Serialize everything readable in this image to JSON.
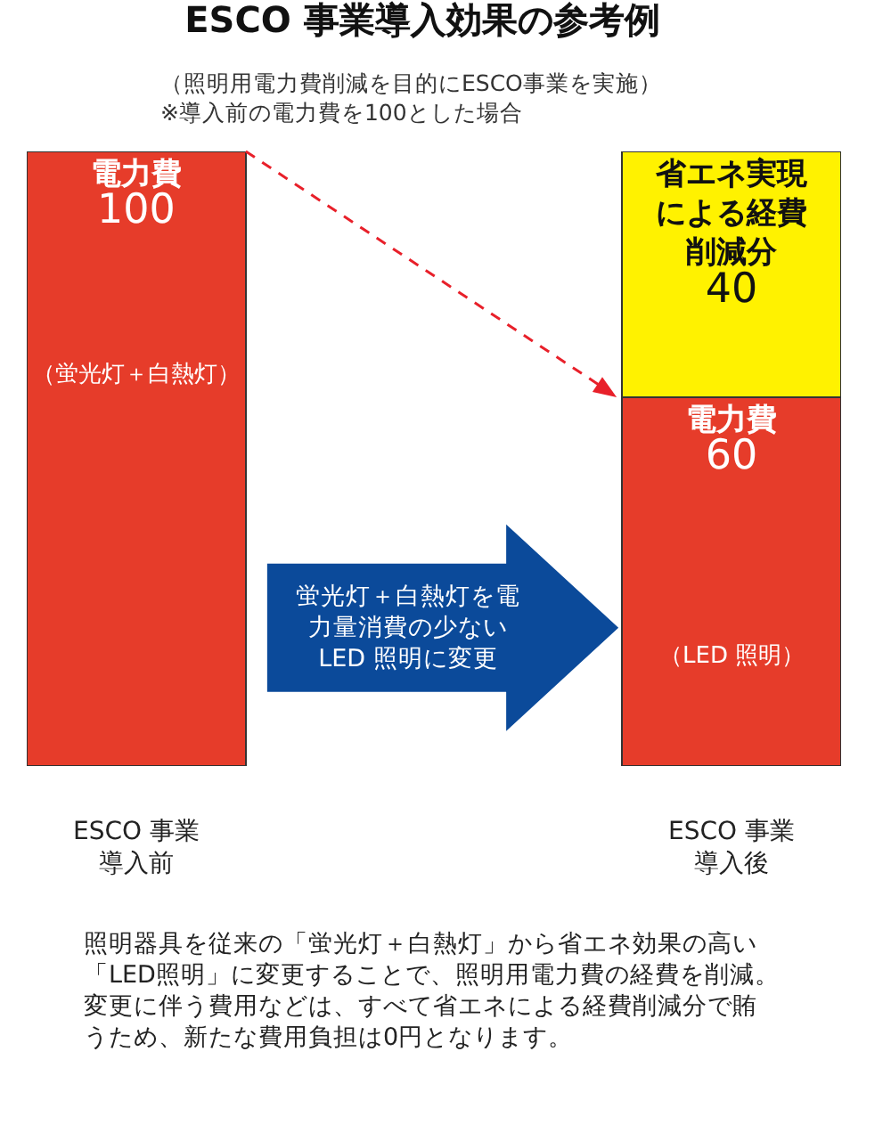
{
  "chart_data": {
    "type": "bar",
    "title": "ESCO 事業導入効果の参考例",
    "subtitle": "（照明用電力費削減を目的にESCO事業を実施）\n※導入前の電力費を100とした場合",
    "categories": [
      "ESCO 事業導入前",
      "ESCO 事業導入後"
    ],
    "stacked": true,
    "data_labels": true,
    "series": [
      {
        "name": "電力費",
        "color": "#e63c2a",
        "values": [
          100,
          60
        ]
      },
      {
        "name": "省エネ実現による経費削減分",
        "color": "#fff200",
        "values": [
          null,
          40
        ]
      }
    ],
    "annotations": [
      "（蛍光灯＋白熱灯）",
      "（LED 照明）",
      "蛍光灯＋白熱灯を電力量消費の少ないLED 照明に変更",
      "照明器具を従来の「蛍光灯＋白熱灯」から省エネ効果の高い「LED照明」に変更することで、照明用電力費の経費を削減。変更に伴う費用などは、すべて省エネによる経費削減分で賄うため、新たな費用負担は0円となります。"
    ]
  }
}
